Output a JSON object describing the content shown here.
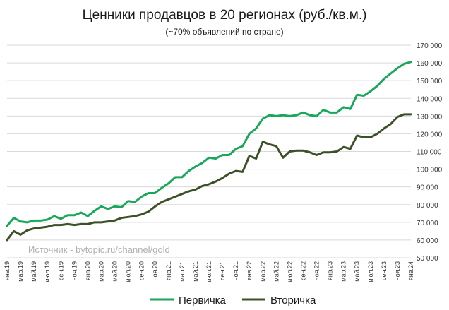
{
  "chart_data": {
    "type": "line",
    "title": "Ценники продавцов в 20 регионах (руб./кв.м.)",
    "subtitle": "(~70% объявлений по стране)",
    "watermark": "Источник - bytopic.ru/channel/gold",
    "xlabel": "",
    "ylabel": "",
    "ylim": [
      50000,
      170000
    ],
    "yticks": [
      50000,
      60000,
      70000,
      80000,
      90000,
      100000,
      110000,
      120000,
      130000,
      140000,
      150000,
      160000,
      170000
    ],
    "ytick_labels": [
      "50 000",
      "60 000",
      "70 000",
      "80 000",
      "90 000",
      "100 000",
      "110 000",
      "120 000",
      "130 000",
      "140 000",
      "150 000",
      "160 000",
      "170 000"
    ],
    "grid": true,
    "legend_position": "bottom",
    "x_labels": [
      "янв.19",
      "мар.19",
      "май.19",
      "июл.19",
      "сен.19",
      "ноя.19",
      "янв.20",
      "мар.20",
      "май.20",
      "июл.20",
      "сен.20",
      "ноя.20",
      "янв.21",
      "мар.21",
      "май.21",
      "июл.21",
      "сен.21",
      "ноя.21",
      "янв.22",
      "мар.22",
      "май.22",
      "июл.22",
      "сен.22",
      "ноя.22",
      "янв.23",
      "мар.23",
      "май.23",
      "июл.23",
      "сен.23",
      "ноя.23",
      "янв.24"
    ],
    "series": [
      {
        "name": "Первичка",
        "color": "#1aa75b",
        "values": [
          68000,
          72500,
          70500,
          70000,
          71000,
          71000,
          71500,
          73500,
          72000,
          74000,
          74000,
          75500,
          73500,
          76500,
          79000,
          77500,
          79000,
          78500,
          82000,
          81500,
          84500,
          86500,
          86500,
          89500,
          92000,
          95500,
          95500,
          99000,
          101500,
          103500,
          106500,
          106000,
          108000,
          108000,
          111500,
          113000,
          120000,
          123000,
          128500,
          130500,
          130000,
          130500,
          130000,
          130500,
          132000,
          130500,
          130000,
          133500,
          132000,
          132000,
          135000,
          134000,
          142000,
          141500,
          144000,
          147000,
          151000,
          154000,
          157000,
          159500,
          160500
        ]
      },
      {
        "name": "Вторичка",
        "color": "#3d5128",
        "values": [
          60000,
          65000,
          63000,
          65500,
          66500,
          67000,
          67500,
          68500,
          68500,
          69000,
          68500,
          69000,
          69000,
          70000,
          70000,
          70500,
          71000,
          72500,
          73000,
          73500,
          74500,
          76000,
          79000,
          81500,
          83000,
          84500,
          86000,
          87500,
          88500,
          90500,
          91500,
          93000,
          95000,
          97500,
          99000,
          98500,
          107500,
          106000,
          115500,
          114000,
          113000,
          106500,
          110000,
          110500,
          110500,
          109500,
          108000,
          109500,
          109500,
          110000,
          112500,
          111500,
          119000,
          118000,
          118000,
          120000,
          123000,
          125500,
          129500,
          131000,
          131000
        ]
      }
    ]
  }
}
